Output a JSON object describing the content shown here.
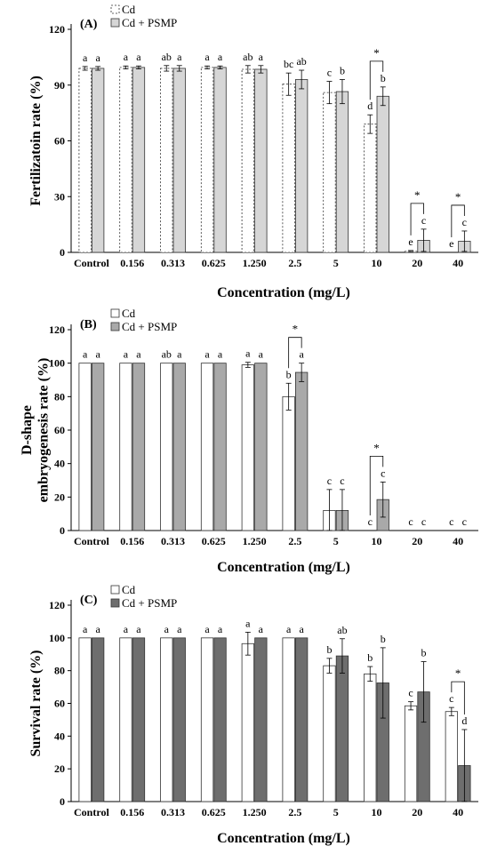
{
  "legend": [
    "Cd",
    "Cd + PSMP"
  ],
  "chart_data": [
    {
      "type": "bar",
      "panel": "(A)",
      "categories": [
        "Control",
        "0.156",
        "0.313",
        "0.625",
        "1.250",
        "2.5",
        "5",
        "10",
        "20",
        "40"
      ],
      "ylabel": "Fertilizatoin rate (%)",
      "xlabel": "Concentration (mg/L)",
      "ylim": [
        0,
        120
      ],
      "yticks": [
        0,
        30,
        60,
        90,
        120
      ],
      "yticks_label": [
        "0",
        "30",
        "60",
        "90",
        "120"
      ],
      "series": [
        {
          "name": "Cd",
          "values": [
            99,
            99.5,
            99,
            99.5,
            98.5,
            90.5,
            86,
            69,
            0.5,
            0
          ],
          "errors": [
            1,
            0.8,
            1.5,
            0.8,
            2,
            6,
            6,
            5,
            0.5,
            0
          ],
          "letters": [
            "a",
            "a",
            "ab",
            "a",
            "ab",
            "bc",
            "c",
            "d",
            "e",
            "e"
          ]
        },
        {
          "name": "Cd + PSMP",
          "values": [
            99,
            99.5,
            99,
            99.5,
            98.5,
            93,
            86.5,
            84,
            6.5,
            6
          ],
          "errors": [
            1,
            0.8,
            1.5,
            0.8,
            2,
            5,
            6.5,
            5,
            6,
            5.5
          ],
          "letters": [
            "a",
            "a",
            "a",
            "a",
            "a",
            "ab",
            "b",
            "b",
            "c",
            "c"
          ]
        }
      ],
      "significance": [
        {
          "category": "10",
          "label": "*"
        },
        {
          "category": "20",
          "label": "*"
        },
        {
          "category": "40",
          "label": "*"
        }
      ]
    },
    {
      "type": "bar",
      "panel": "(B)",
      "categories": [
        "Control",
        "0.156",
        "0.313",
        "0.625",
        "1.250",
        "2.5",
        "5",
        "10",
        "20",
        "40"
      ],
      "ylabel": "D-shape embryogenesis rate (%)",
      "ylabel_lines": [
        "D-shape",
        "embryogenesis rate (%)"
      ],
      "xlabel": "Concentration (mg/L)",
      "ylim": [
        0,
        120
      ],
      "yticks": [
        0,
        20,
        40,
        60,
        80,
        100,
        120
      ],
      "yticks_label": [
        "0",
        "20",
        "40",
        "60",
        "80",
        "100",
        "120"
      ],
      "series": [
        {
          "name": "Cd",
          "values": [
            100,
            100,
            100,
            100,
            99,
            80,
            12,
            0,
            0,
            0
          ],
          "errors": [
            0,
            0,
            0,
            0,
            1.5,
            8,
            12.5,
            0,
            0,
            0
          ],
          "letters": [
            "a",
            "a",
            "ab",
            "a",
            "a",
            "b",
            "c",
            "c",
            "c",
            "c"
          ]
        },
        {
          "name": "Cd + PSMP",
          "values": [
            100,
            100,
            100,
            100,
            100,
            94.5,
            12,
            18.5,
            0,
            0
          ],
          "errors": [
            0,
            0,
            0,
            0,
            0,
            5.5,
            12.5,
            10.5,
            0,
            0
          ],
          "letters": [
            "a",
            "a",
            "a",
            "a",
            "a",
            "a",
            "c",
            "c",
            "c",
            "c"
          ]
        }
      ],
      "significance": [
        {
          "category": "2.5",
          "label": "*"
        },
        {
          "category": "10",
          "label": "*"
        }
      ]
    },
    {
      "type": "bar",
      "panel": "(C)",
      "categories": [
        "Control",
        "0.156",
        "0.313",
        "0.625",
        "1.250",
        "2.5",
        "5",
        "10",
        "20",
        "40"
      ],
      "ylabel": "Survival rate (%)",
      "xlabel": "Concentration (mg/L)",
      "ylim": [
        0,
        120
      ],
      "yticks": [
        0,
        20,
        40,
        60,
        80,
        100,
        120
      ],
      "yticks_label": [
        "0",
        "20",
        "40",
        "60",
        "80",
        "100",
        "120"
      ],
      "series": [
        {
          "name": "Cd",
          "values": [
            100,
            100,
            100,
            100,
            96.5,
            100,
            83,
            78,
            58.5,
            55
          ],
          "errors": [
            0,
            0,
            0,
            0,
            7,
            0,
            4.5,
            4.5,
            2.5,
            2.5
          ],
          "letters": [
            "a",
            "a",
            "a",
            "a",
            "a",
            "a",
            "b",
            "b",
            "c",
            "c"
          ]
        },
        {
          "name": "Cd + PSMP",
          "values": [
            100,
            100,
            100,
            100,
            100,
            100,
            89,
            72.5,
            67,
            22
          ],
          "errors": [
            0,
            0,
            0,
            0,
            0,
            0,
            10.5,
            21.5,
            18.5,
            22
          ],
          "letters": [
            "a",
            "a",
            "a",
            "a",
            "a",
            "a",
            "ab",
            "b",
            "b",
            "d"
          ]
        }
      ],
      "significance": [
        {
          "category": "40",
          "label": "*"
        }
      ]
    }
  ]
}
